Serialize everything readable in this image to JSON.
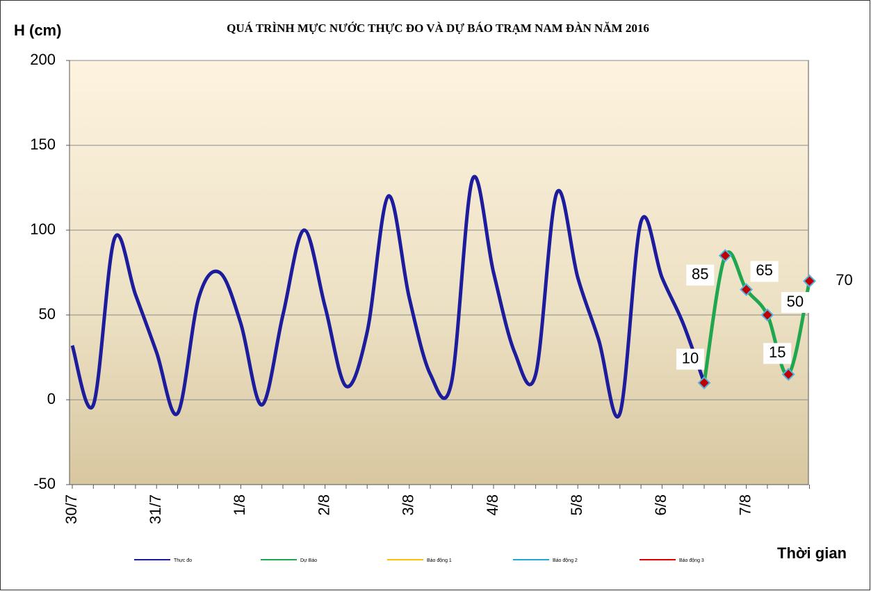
{
  "chart_data": {
    "type": "line",
    "title": "QUÁ TRÌNH MỰC NƯỚC THỰC ĐO VÀ DỰ BÁO TRẠM  NAM ĐÀN NĂM 2016",
    "y_label": "H (cm)",
    "x_label": "Thời gian",
    "categories": [
      "30/7",
      null,
      null,
      null,
      "31/7",
      null,
      null,
      null,
      "1/8",
      null,
      null,
      null,
      "2/8",
      null,
      null,
      null,
      "3/8",
      null,
      null,
      null,
      "4/8",
      null,
      null,
      null,
      "5/8",
      null,
      null,
      null,
      "6/8",
      null,
      null,
      null,
      "7/8",
      null,
      null,
      null
    ],
    "series": [
      {
        "name": "Thực đo",
        "color": "#1c1c9c",
        "values": [
          32,
          -3,
          95,
          62,
          28,
          -8,
          60,
          75,
          45,
          -3,
          50,
          100,
          55,
          8,
          40,
          120,
          60,
          15,
          10,
          130,
          75,
          28,
          15,
          122,
          72,
          35,
          -8,
          105,
          72,
          45,
          10,
          null,
          null,
          null,
          null,
          null
        ]
      },
      {
        "name": "Dự Báo",
        "color": "#1fa64f",
        "markers": true,
        "data_labels": true,
        "values": [
          null,
          null,
          null,
          null,
          null,
          null,
          null,
          null,
          null,
          null,
          null,
          null,
          null,
          null,
          null,
          null,
          null,
          null,
          null,
          null,
          null,
          null,
          null,
          null,
          null,
          null,
          null,
          null,
          null,
          null,
          10,
          85,
          65,
          50,
          15,
          70
        ]
      },
      {
        "name": "Báo động 1",
        "color": "#ffc000"
      },
      {
        "name": "Báo động 2",
        "color": "#1fa8d8"
      },
      {
        "name": "Báo động 3",
        "color": "#e00000"
      }
    ],
    "ylim": [
      -50,
      200
    ],
    "yticks": [
      -50,
      0,
      50,
      100,
      150,
      200
    ],
    "grid": true,
    "legend": "bottom"
  }
}
